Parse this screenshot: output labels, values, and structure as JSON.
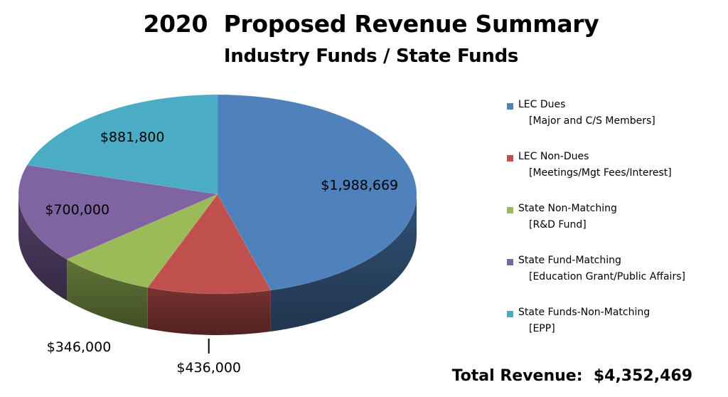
{
  "chart_data": {
    "type": "pie",
    "title": "2020  Proposed Revenue Summary",
    "subtitle": "Industry Funds / State Funds",
    "total_label": "Total Revenue:  $4,352,469",
    "series": [
      {
        "name": "LEC Dues",
        "detail": "[Major and C/S Members]",
        "value": 1988669,
        "label": "$1,988,669",
        "color": "#4f81bd"
      },
      {
        "name": "LEC Non-Dues",
        "detail": "[Meetings/Mgt Fees/Interest]",
        "value": 436000,
        "label": "$436,000",
        "color": "#c0504d"
      },
      {
        "name": "State Non-Matching",
        "detail": "[R&D Fund]",
        "value": 346000,
        "label": "$346,000",
        "color": "#9bbb59"
      },
      {
        "name": "State Fund-Matching",
        "detail": "[Education Grant/Public Affairs]",
        "value": 700000,
        "label": "$700,000",
        "color": "#8064a2"
      },
      {
        "name": "State Funds-Non-Matching",
        "detail": "[EPP]",
        "value": 881800,
        "label": "$881,800",
        "color": "#4bacc6"
      }
    ],
    "legend_position": "right"
  }
}
